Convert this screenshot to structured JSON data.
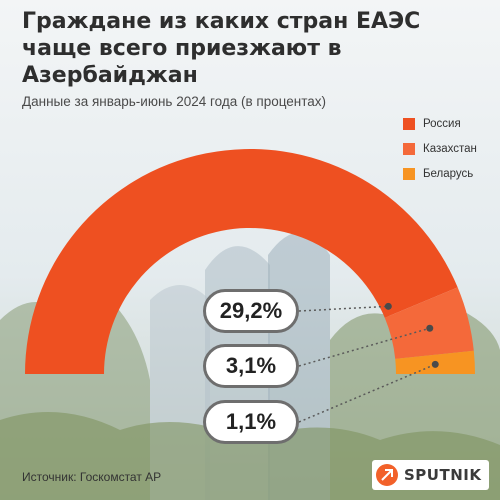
{
  "title": "Граждане из каких стран ЕАЭС чаще всего приезжают в Азербайджан",
  "subtitle": "Данные за январь-июнь 2024 года (в процентах)",
  "source": "Источник: Госкомстат АР",
  "brand": "SPUTNIK",
  "colors": {
    "Россия": "#ee5021",
    "Казахстан": "#f4693a",
    "Беларусь": "#f79422"
  },
  "chart_data": {
    "type": "pie",
    "style": "semicircle donut",
    "title": "Граждане из каких стран ЕАЭС чаще всего приезжают в Азербайджан",
    "subtitle": "Данные за январь-июнь 2024 года (в процентах)",
    "legend_position": "top-right",
    "categories": [
      "Россия",
      "Казахстан",
      "Беларусь"
    ],
    "values": [
      29.2,
      3.1,
      1.1
    ],
    "data_labels": [
      "29,2%",
      "3,1%",
      "1,1%"
    ],
    "unit": "%"
  }
}
